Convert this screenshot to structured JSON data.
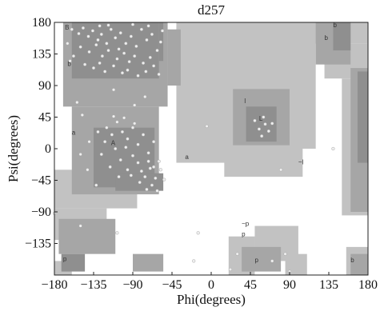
{
  "chart_data": {
    "type": "scatter",
    "title": "d257",
    "xlabel": "Phi(degrees)",
    "ylabel": "Psi(degrees)",
    "xlim": [
      -180,
      180
    ],
    "ylim": [
      -180,
      180
    ],
    "xticks": [
      -180,
      -135,
      -90,
      -45,
      0,
      45,
      90,
      135,
      180
    ],
    "yticks": [
      180,
      135,
      90,
      45,
      0,
      -45,
      -90,
      -135
    ],
    "x_tick_labels": [
      "−180",
      "−135",
      "−90",
      "−45",
      "0",
      "45",
      "90",
      "135",
      "180"
    ],
    "y_tick_labels": [
      "180",
      "135",
      "90",
      "45",
      "0",
      "−45",
      "−90",
      "−135"
    ],
    "grid": false,
    "background_regions": {
      "disallowed_color": "#ffffff",
      "generous_color": "#c2c2c2",
      "allowed_color": "#a6a6a6",
      "core_color": "#8f8f8f"
    },
    "point_color": "#eeeeee",
    "series": [
      {
        "points": [
          [
            -160,
            170
          ],
          [
            -152,
            164
          ],
          [
            -147,
            172
          ],
          [
            -141,
            160
          ],
          [
            -136,
            168
          ],
          [
            -130,
            155
          ],
          [
            -126,
            163
          ],
          [
            -120,
            150
          ],
          [
            -115,
            170
          ],
          [
            -110,
            158
          ],
          [
            -104,
            165
          ],
          [
            -98,
            150
          ],
          [
            -92,
            160
          ],
          [
            -86,
            146
          ],
          [
            -80,
            170
          ],
          [
            -74,
            155
          ],
          [
            -68,
            163
          ],
          [
            -62,
            140
          ],
          [
            -58,
            152
          ],
          [
            -150,
            145
          ],
          [
            -140,
            138
          ],
          [
            -132,
            148
          ],
          [
            -125,
            132
          ],
          [
            -118,
            140
          ],
          [
            -108,
            128
          ],
          [
            -100,
            136
          ],
          [
            -94,
            124
          ],
          [
            -88,
            132
          ],
          [
            -78,
            122
          ],
          [
            -70,
            130
          ],
          [
            -66,
            118
          ],
          [
            -145,
            120
          ],
          [
            -135,
            115
          ],
          [
            -122,
            110
          ],
          [
            -112,
            118
          ],
          [
            -102,
            108
          ],
          [
            -96,
            112
          ],
          [
            -84,
            104
          ],
          [
            -75,
            110
          ],
          [
            -165,
            150
          ],
          [
            -158,
            132
          ],
          [
            -162,
            125
          ],
          [
            -128,
            175
          ],
          [
            -118,
            176
          ],
          [
            -90,
            177
          ],
          [
            -72,
            175
          ],
          [
            -56,
            168
          ],
          [
            -106,
            142
          ],
          [
            -128,
            122
          ],
          [
            -60,
            106
          ],
          [
            -120,
            30
          ],
          [
            -114,
            20
          ],
          [
            -108,
            38
          ],
          [
            -102,
            24
          ],
          [
            -96,
            14
          ],
          [
            -90,
            30
          ],
          [
            -84,
            6
          ],
          [
            -78,
            20
          ],
          [
            -72,
            -6
          ],
          [
            -66,
            10
          ],
          [
            -60,
            -18
          ],
          [
            -70,
            -28
          ],
          [
            -76,
            -40
          ],
          [
            -64,
            -42
          ],
          [
            -58,
            -30
          ],
          [
            -84,
            -20
          ],
          [
            -90,
            -10
          ],
          [
            -96,
            -30
          ],
          [
            -104,
            -16
          ],
          [
            -110,
            0
          ],
          [
            -116,
            -26
          ],
          [
            -122,
            10
          ],
          [
            -126,
            -8
          ],
          [
            -82,
            -48
          ],
          [
            -68,
            -52
          ],
          [
            -88,
            36
          ],
          [
            -100,
            44
          ],
          [
            -112,
            46
          ],
          [
            -74,
            -58
          ],
          [
            -62,
            -60
          ],
          [
            -92,
            -38
          ],
          [
            -80,
            -32
          ],
          [
            -72,
            -18
          ],
          [
            -98,
            2
          ],
          [
            -106,
            -40
          ],
          [
            -66,
            -26
          ],
          [
            -54,
            -44
          ],
          [
            -130,
            24
          ],
          [
            50,
            40
          ],
          [
            55,
            28
          ],
          [
            60,
            45
          ],
          [
            62,
            35
          ],
          [
            66,
            25
          ],
          [
            58,
            18
          ],
          [
            70,
            36
          ],
          [
            -180,
            -92
          ],
          [
            -150,
            -110
          ],
          [
            -108,
            -120
          ],
          [
            -154,
            66
          ],
          [
            -148,
            48
          ],
          [
            -88,
            62
          ],
          [
            -76,
            74
          ],
          [
            -112,
            84
          ],
          [
            30,
            -150
          ],
          [
            22,
            -172
          ],
          [
            70,
            -160
          ],
          [
            85,
            -150
          ],
          [
            90,
            -175
          ],
          [
            -15,
            -120
          ],
          [
            -20,
            -160
          ],
          [
            -150,
            -8
          ],
          [
            -142,
            -30
          ],
          [
            -140,
            10
          ],
          [
            -132,
            -52
          ],
          [
            80,
            -30
          ],
          [
            140,
            0
          ],
          [
            -5,
            32
          ]
        ]
      }
    ],
    "region_tags": [
      {
        "text": "B",
        "phi": -168,
        "psi": 170
      },
      {
        "text": "b",
        "phi": -165,
        "psi": 118
      },
      {
        "text": "b",
        "phi": 130,
        "psi": 155
      },
      {
        "text": "b",
        "phi": 140,
        "psi": 173
      },
      {
        "text": "a",
        "phi": -160,
        "psi": 20
      },
      {
        "text": "A",
        "phi": -115,
        "psi": 5
      },
      {
        "text": "l",
        "phi": 38,
        "psi": 65
      },
      {
        "text": "L",
        "phi": 55,
        "psi": 40
      },
      {
        "text": "a",
        "phi": -30,
        "psi": -15
      },
      {
        "text": "p",
        "phi": -170,
        "psi": -160
      },
      {
        "text": "p",
        "phi": 50,
        "psi": -162
      },
      {
        "text": "b",
        "phi": 160,
        "psi": -162
      },
      {
        "text": "p",
        "phi": 35,
        "psi": -125
      },
      {
        "text": "~l",
        "phi": 100,
        "psi": -22
      },
      {
        "text": "~p",
        "phi": 35,
        "psi": -110
      }
    ]
  }
}
